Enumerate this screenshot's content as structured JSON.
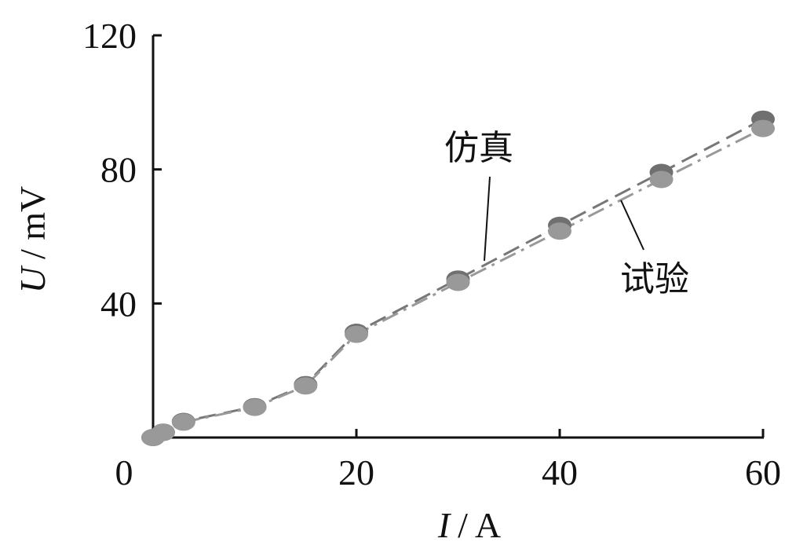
{
  "chart_data": {
    "type": "line",
    "x": [
      0,
      1,
      3,
      10,
      15,
      20,
      30,
      40,
      50,
      60
    ],
    "xlim": [
      0,
      60
    ],
    "ylim": [
      0,
      120
    ],
    "xticks": [
      0,
      20,
      40,
      60
    ],
    "yticks": [
      40,
      80,
      120
    ],
    "xlabel": {
      "symbol": "I",
      "unit": "/ A"
    },
    "ylabel": {
      "symbol": "U",
      "unit": "/ mV"
    },
    "grid": false,
    "series": [
      {
        "name": "仿真",
        "style": "dashed",
        "color": "#777777",
        "values": [
          0,
          1.6,
          4.8,
          9.2,
          15.8,
          31.4,
          47.3,
          63.3,
          79.1,
          95.0
        ]
      },
      {
        "name": "试验",
        "style": "dash-dot",
        "color": "#999999",
        "values": [
          0,
          1.5,
          4.6,
          9.0,
          15.4,
          30.8,
          46.3,
          61.6,
          77.0,
          92.2
        ]
      }
    ]
  }
}
